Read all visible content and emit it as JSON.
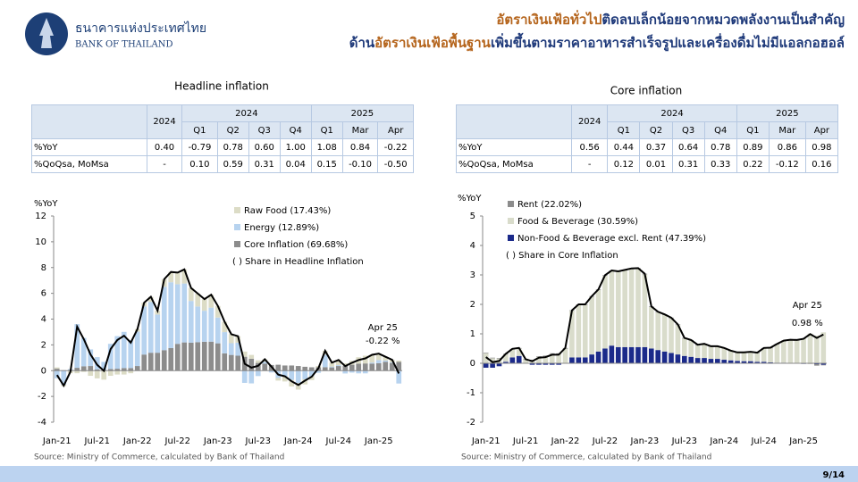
{
  "header": {
    "org_th": "ธนาคารแห่งประเทศไทย",
    "org_en": "BANK OF THAILAND",
    "title_line1": [
      {
        "text": "อัตราเงินเฟ้อทั่วไป",
        "color": "#b5651d"
      },
      {
        "text": "ติดลบเล็กน้อยจากหมวดพลังงานเป็นสำคัญ",
        "color": "#1f3a7a"
      }
    ],
    "title_line2": [
      {
        "text": "ด้าน",
        "color": "#1f3a7a"
      },
      {
        "text": "อัตราเงินเฟ้อพื้นฐาน",
        "color": "#b5651d"
      },
      {
        "text": "เพิ่มขึ้นตามราคาอาหารสำเร็จรูปและเครื่องดื่มไม่มีแอลกอฮอล์",
        "color": "#1f3a7a"
      }
    ]
  },
  "tables": [
    {
      "title": "Headline inflation",
      "header": {
        "year": "2024",
        "groups": [
          {
            "label": "2024",
            "cols": [
              "Q1",
              "Q2",
              "Q3",
              "Q4"
            ]
          },
          {
            "label": "2025",
            "cols": [
              "Q1",
              "Mar",
              "Apr"
            ]
          }
        ]
      },
      "rows": [
        {
          "label": "%YoY",
          "values": [
            "0.40",
            "-0.79",
            "0.78",
            "0.60",
            "1.00",
            "1.08",
            "0.84",
            "-0.22"
          ]
        },
        {
          "label": "%QoQsa, MoMsa",
          "values": [
            "-",
            "0.10",
            "0.59",
            "0.31",
            "0.04",
            "0.15",
            "-0.10",
            "-0.50"
          ]
        }
      ]
    },
    {
      "title": "Core inflation",
      "header": {
        "year": "2024",
        "groups": [
          {
            "label": "2024",
            "cols": [
              "Q1",
              "Q2",
              "Q3",
              "Q4"
            ]
          },
          {
            "label": "2025",
            "cols": [
              "Q1",
              "Mar",
              "Apr"
            ]
          }
        ]
      },
      "rows": [
        {
          "label": "%YoY",
          "values": [
            "0.56",
            "0.44",
            "0.37",
            "0.64",
            "0.78",
            "0.89",
            "0.86",
            "0.98"
          ]
        },
        {
          "label": "%QoQsa, MoMsa",
          "values": [
            "-",
            "0.12",
            "0.01",
            "0.31",
            "0.33",
            "0.22",
            "-0.12",
            "0.16"
          ]
        }
      ]
    }
  ],
  "chart_data": [
    {
      "type": "bar",
      "stacked": true,
      "y_label": "%YoY",
      "categories": [
        "Jan-21",
        null,
        null,
        null,
        null,
        null,
        "Jul-21",
        null,
        null,
        null,
        null,
        null,
        "Jan-22",
        null,
        null,
        null,
        null,
        null,
        "Jul-22",
        null,
        null,
        null,
        null,
        null,
        "Jan-23",
        null,
        null,
        null,
        null,
        null,
        "Jul-23",
        null,
        null,
        null,
        null,
        null,
        "Jan-24",
        null,
        null,
        null,
        null,
        null,
        "Jul-24",
        null,
        null,
        null,
        null,
        null,
        "Jan-25",
        null,
        null,
        null
      ],
      "ylim": [
        -4,
        12
      ],
      "yticks": [
        -4,
        -2,
        0,
        2,
        4,
        6,
        8,
        10,
        12
      ],
      "series": [
        {
          "name": "Raw Food (17.43%)",
          "color": "#dcdcc6",
          "values": [
            0.1,
            -0.1,
            -0.2,
            -0.2,
            -0.1,
            -0.4,
            -0.6,
            -0.7,
            -0.4,
            -0.3,
            -0.3,
            -0.2,
            0.2,
            0.3,
            0.4,
            0.3,
            0.6,
            0.8,
            0.9,
            1.1,
            1.0,
            1.0,
            0.9,
            1.0,
            0.9,
            0.8,
            0.7,
            0.5,
            0.4,
            0.3,
            0.2,
            0.2,
            0.0,
            -0.2,
            -0.4,
            -0.5,
            -0.5,
            -0.4,
            -0.3,
            0.1,
            0.3,
            0.3,
            0.4,
            0.2,
            0.3,
            0.5,
            0.6,
            0.6,
            0.5,
            0.3,
            0.2,
            0.1
          ]
        },
        {
          "name": "Energy (12.89%)",
          "color": "#b7d3ef",
          "values": [
            -0.59,
            -1.1,
            0.06,
            3.39,
            2.2,
            1.29,
            0.95,
            0.63,
            1.95,
            2.53,
            2.81,
            2.17,
            2.67,
            3.73,
            3.94,
            2.96,
            4.91,
            5.11,
            4.63,
            4.57,
            3.24,
            2.77,
            2.41,
            2.64,
            2.0,
            1.65,
            0.91,
            1.01,
            -0.95,
            -0.99,
            -0.42,
            0.13,
            -0.14,
            -0.57,
            -0.44,
            -0.73,
            -0.97,
            -0.67,
            -0.43,
            -0.17,
            0.97,
            0.07,
            0.07,
            -0.22,
            -0.15,
            -0.21,
            -0.21,
            0.08,
            0.24,
            0.09,
            0.04,
            -1.0
          ]
        },
        {
          "name": "Core Inflation (69.68%)",
          "color": "#8c8c8c",
          "values": [
            0.15,
            0.03,
            0.06,
            0.22,
            0.34,
            0.36,
            0.1,
            0.05,
            0.13,
            0.15,
            0.2,
            0.2,
            0.36,
            1.25,
            1.39,
            1.39,
            1.59,
            1.75,
            2.08,
            2.19,
            2.17,
            2.21,
            2.24,
            2.25,
            2.12,
            1.34,
            1.22,
            1.16,
            1.08,
            0.92,
            0.6,
            0.55,
            0.44,
            0.46,
            0.4,
            0.4,
            0.36,
            0.3,
            0.26,
            0.26,
            0.27,
            0.25,
            0.36,
            0.37,
            0.46,
            0.54,
            0.56,
            0.55,
            0.58,
            0.69,
            0.6,
            0.68
          ]
        },
        {
          "kind": "line",
          "color": "#000000",
          "values": [
            -0.34,
            -1.17,
            -0.08,
            3.41,
            2.44,
            1.25,
            0.45,
            -0.02,
            1.68,
            2.38,
            2.71,
            2.17,
            3.23,
            5.28,
            5.73,
            4.65,
            7.1,
            7.66,
            7.61,
            7.86,
            6.41,
            5.98,
            5.55,
            5.89,
            5.02,
            3.79,
            2.83,
            2.67,
            0.53,
            0.23,
            0.38,
            0.88,
            0.3,
            -0.31,
            -0.44,
            -0.83,
            -1.11,
            -0.77,
            -0.47,
            0.19,
            1.54,
            0.62,
            0.83,
            0.35,
            0.61,
            0.83,
            0.95,
            1.23,
            1.32,
            1.08,
            0.84,
            -0.22
          ]
        }
      ],
      "legend_note": "( ) Share in Headline Inflation",
      "annotations": [
        "Apr 25",
        "-0.22 %"
      ],
      "source": "Source: Ministry of Commerce, calculated by Bank of Thailand"
    },
    {
      "type": "bar",
      "stacked": true,
      "y_label": "%YoY",
      "categories": [
        "Jan-21",
        null,
        null,
        null,
        null,
        null,
        "Jul-21",
        null,
        null,
        null,
        null,
        null,
        "Jan-22",
        null,
        null,
        null,
        null,
        null,
        "Jul-22",
        null,
        null,
        null,
        null,
        null,
        "Jan-23",
        null,
        null,
        null,
        null,
        null,
        "Jul-23",
        null,
        null,
        null,
        null,
        null,
        "Jan-24",
        null,
        null,
        null,
        null,
        null,
        "Jul-24",
        null,
        null,
        null,
        null,
        null,
        "Jan-25",
        null,
        null,
        null
      ],
      "ylim": [
        -2,
        5
      ],
      "yticks": [
        -2,
        -1,
        0,
        1,
        2,
        3,
        4,
        5
      ],
      "series": [
        {
          "name": "Rent (22.02%)",
          "color": "#8c8c8c",
          "values": [
            0.02,
            0.02,
            0.02,
            0.02,
            0.02,
            0.02,
            0.02,
            0.02,
            0.02,
            0.02,
            0.02,
            0.02,
            0.02,
            0.02,
            0.02,
            0.02,
            0.02,
            0.02,
            0.02,
            0.02,
            0.02,
            0.02,
            0.02,
            0.02,
            0.02,
            0.02,
            0.02,
            0.02,
            0.02,
            0.02,
            0.02,
            0.02,
            0.02,
            0.02,
            0.02,
            0.02,
            0.02,
            0.02,
            0.02,
            0.02,
            0.02,
            0.02,
            0.02,
            0.02,
            0.02,
            0.02,
            0.02,
            0.02,
            0.0,
            -0.02,
            -0.05,
            -0.02
          ]
        },
        {
          "name": "Food & Beverage (30.59%)",
          "color": "#d9dccb",
          "values": [
            0.34,
            0.17,
            0.16,
            0.25,
            0.27,
            0.25,
            0.12,
            0.1,
            0.22,
            0.24,
            0.32,
            0.32,
            0.5,
            1.58,
            1.78,
            1.78,
            1.96,
            2.09,
            2.47,
            2.53,
            2.55,
            2.6,
            2.65,
            2.66,
            2.47,
            1.41,
            1.28,
            1.24,
            1.18,
            1.0,
            0.59,
            0.55,
            0.43,
            0.46,
            0.41,
            0.41,
            0.38,
            0.31,
            0.27,
            0.28,
            0.3,
            0.29,
            0.45,
            0.48,
            0.62,
            0.73,
            0.78,
            0.77,
            0.85,
            1.01,
            0.94,
            1.05
          ]
        },
        {
          "name": "Non-Food & Beverage excl. Rent (47.39%)",
          "color": "#1b2a8a",
          "values": [
            -0.15,
            -0.15,
            -0.1,
            0.05,
            0.2,
            0.25,
            0.0,
            -0.05,
            -0.05,
            -0.05,
            -0.05,
            -0.05,
            0.0,
            0.2,
            0.2,
            0.2,
            0.3,
            0.4,
            0.5,
            0.6,
            0.55,
            0.55,
            0.55,
            0.55,
            0.55,
            0.5,
            0.45,
            0.4,
            0.35,
            0.3,
            0.25,
            0.22,
            0.18,
            0.18,
            0.15,
            0.15,
            0.12,
            0.1,
            0.08,
            0.07,
            0.07,
            0.05,
            0.05,
            0.03,
            0.02,
            0.02,
            0.0,
            0.0,
            -0.02,
            0.0,
            -0.03,
            -0.05
          ]
        },
        {
          "kind": "line",
          "color": "#000000",
          "values": [
            0.21,
            0.04,
            0.08,
            0.32,
            0.49,
            0.52,
            0.14,
            0.07,
            0.19,
            0.21,
            0.29,
            0.29,
            0.52,
            1.8,
            2.0,
            2.0,
            2.28,
            2.51,
            2.99,
            3.15,
            3.12,
            3.17,
            3.22,
            3.23,
            3.04,
            1.93,
            1.75,
            1.66,
            1.55,
            1.32,
            0.86,
            0.79,
            0.63,
            0.66,
            0.58,
            0.58,
            0.52,
            0.43,
            0.37,
            0.37,
            0.39,
            0.36,
            0.52,
            0.53,
            0.66,
            0.77,
            0.8,
            0.79,
            0.83,
            0.99,
            0.86,
            0.98
          ]
        }
      ],
      "legend_note": "( ) Share in Core Inflation",
      "annotations": [
        "Apr 25",
        "0.98 %"
      ],
      "source": "Source: Ministry of Commerce, calculated by Bank of Thailand"
    }
  ],
  "page_number": "9/14"
}
